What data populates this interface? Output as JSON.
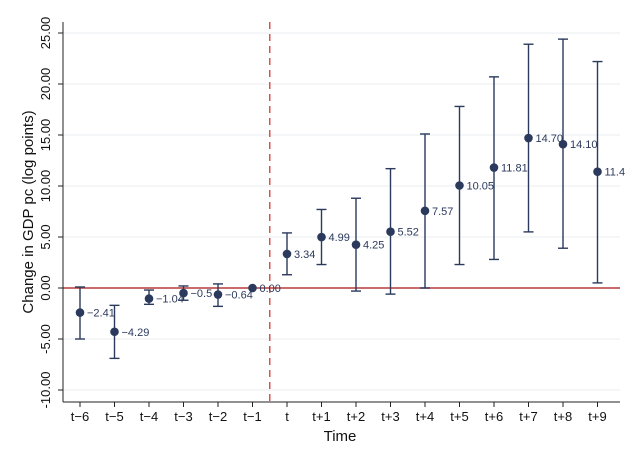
{
  "chart_data": {
    "type": "scatter",
    "subtype": "event-study coefficient plot with error bars",
    "title": "",
    "xlabel": "Time",
    "ylabel": "Change in GDP pc (log points)",
    "categories": [
      "t−6",
      "t−5",
      "t−4",
      "t−3",
      "t−2",
      "t−1",
      "t",
      "t+1",
      "t+2",
      "t+3",
      "t+4",
      "t+5",
      "t+6",
      "t+7",
      "t+8",
      "t+9"
    ],
    "values": [
      -2.41,
      -4.29,
      -1.04,
      -0.5,
      -0.64,
      0.0,
      3.34,
      4.99,
      4.25,
      5.52,
      7.57,
      10.05,
      11.81,
      14.7,
      14.1,
      11.4
    ],
    "value_labels": [
      "−2.41",
      "−4.29",
      "−1.04",
      "−0.5",
      "−0.64",
      "0.00",
      "3.34",
      "4.99",
      "4.25",
      "5.52",
      "7.57",
      "10.05",
      "11.81",
      "14.70",
      "14.10",
      "11.4"
    ],
    "ci_lower": [
      -5.0,
      -6.9,
      -1.6,
      -1.2,
      -1.8,
      0.0,
      1.3,
      2.3,
      -0.3,
      -0.6,
      0.0,
      2.3,
      2.8,
      5.5,
      3.9,
      0.5
    ],
    "ci_upper": [
      0.1,
      -1.7,
      -0.2,
      0.2,
      0.4,
      0.0,
      5.4,
      7.7,
      8.8,
      11.7,
      15.1,
      17.8,
      20.7,
      23.9,
      24.4,
      22.2
    ],
    "y_ticks": [
      "-10.00",
      "-5.00",
      "0.00",
      "5.00",
      "10.00",
      "15.00",
      "20.00",
      "25.00"
    ],
    "ylim": [
      -11,
      25.5
    ],
    "reference_line": {
      "y": 0,
      "color": "#b83a3a"
    },
    "event_line": {
      "between": [
        "t−1",
        "t"
      ],
      "style": "dashed",
      "color": "#d9534f"
    },
    "marker_color": "#2b3a5c",
    "label_color": "#2b3a5c",
    "grid": true,
    "grid_color": "#e8ecf1"
  }
}
